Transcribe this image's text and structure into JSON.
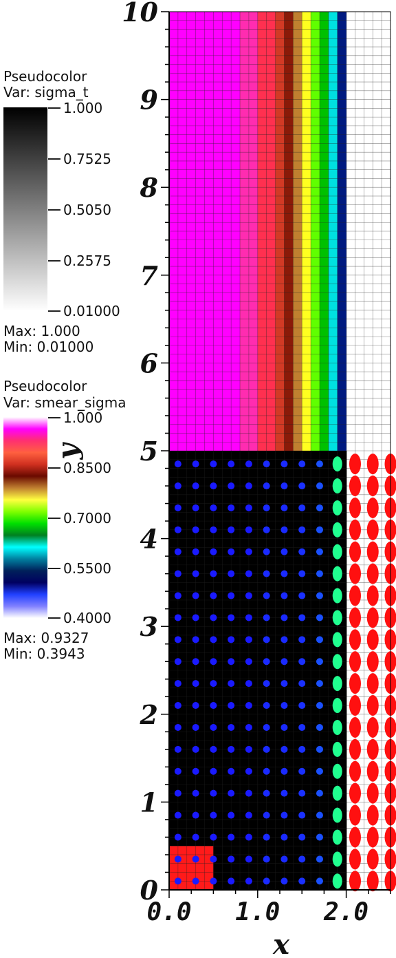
{
  "legends": [
    {
      "title": "Pseudocolor",
      "var": "Var: sigma_t",
      "ticks": [
        "1.000",
        "0.7525",
        "0.5050",
        "0.2575",
        "0.01000"
      ],
      "max": "Max:  1.000",
      "min": "Min:  0.01000",
      "colors": [
        "#000000",
        "#ffffff"
      ]
    },
    {
      "title": "Pseudocolor",
      "var": "Var: smear_sigma",
      "ticks": [
        "1.000",
        "0.8500",
        "0.7000",
        "0.5500",
        "0.4000"
      ],
      "max": "Max:  0.9327",
      "min": "Min:  0.3943",
      "colors": [
        "#ffffff",
        "#ff00ff",
        "#ff3070",
        "#ff6040",
        "#d03020",
        "#6a0a00",
        "#c08030",
        "#ffff40",
        "#80ff00",
        "#00e000",
        "#008020",
        "#00ffff",
        "#0080a0",
        "#00205a",
        "#000060",
        "#2040ff",
        "#8080ff",
        "#ffffff"
      ]
    }
  ],
  "chart_data": {
    "type": "heatmap",
    "xlabel": "x",
    "ylabel": "y",
    "xlim": [
      0,
      2.5
    ],
    "ylim": [
      0,
      10
    ],
    "xticks": [
      "0.0",
      "1.0",
      "2.0"
    ],
    "yticks": [
      "0",
      "1",
      "2",
      "3",
      "4",
      "5",
      "6",
      "7",
      "8",
      "9",
      "10"
    ],
    "upper_region_columns": [
      {
        "x0": 0.0,
        "x1": 0.8,
        "value": 0.93,
        "color": "#ff00ff"
      },
      {
        "x0": 0.8,
        "x1": 1.0,
        "value": 0.91,
        "color": "#ff2cb0"
      },
      {
        "x0": 1.0,
        "x1": 1.2,
        "value": 0.88,
        "color": "#ff3050"
      },
      {
        "x0": 1.2,
        "x1": 1.3,
        "value": 0.87,
        "color": "#d23a25"
      },
      {
        "x0": 1.3,
        "x1": 1.4,
        "value": 0.86,
        "color": "#8a1a08"
      },
      {
        "x0": 1.4,
        "x1": 1.5,
        "value": 0.84,
        "color": "#c08030"
      },
      {
        "x0": 1.5,
        "x1": 1.6,
        "value": 0.81,
        "color": "#ffff20"
      },
      {
        "x0": 1.6,
        "x1": 1.7,
        "value": 0.73,
        "color": "#60ff00"
      },
      {
        "x0": 1.7,
        "x1": 1.8,
        "value": 0.68,
        "color": "#00c000"
      },
      {
        "x0": 1.8,
        "x1": 1.9,
        "value": 0.58,
        "color": "#00e0e0"
      },
      {
        "x0": 1.9,
        "x1": 2.0,
        "value": 0.5,
        "color": "#001a80"
      }
    ],
    "lower_region": {
      "x0": 0.0,
      "x1": 2.0,
      "y0": 0,
      "y1": 5,
      "sigma_t": 1.0,
      "color": "#000000"
    },
    "source_region": {
      "x0": 0.0,
      "x1": 0.5,
      "y0": 0,
      "y1": 0.5,
      "color": "#ff1a1a"
    },
    "void_region": {
      "x0": 2.0,
      "x1": 2.5,
      "y0": 0,
      "y1": 10,
      "sigma_t": 0.01,
      "color": "#ffffff"
    },
    "point_rows_y": [
      0.1,
      0.35,
      0.6,
      0.85,
      1.1,
      1.35,
      1.6,
      1.85,
      2.1,
      2.35,
      2.6,
      2.85,
      3.1,
      3.35,
      3.6,
      3.85,
      4.1,
      4.35,
      4.6,
      4.85
    ],
    "point_columns": [
      {
        "x": 0.1,
        "color": "#1a1aff",
        "kind": "dot"
      },
      {
        "x": 0.3,
        "color": "#1a1aff",
        "kind": "dot"
      },
      {
        "x": 0.5,
        "color": "#1a1aff",
        "kind": "dot"
      },
      {
        "x": 0.7,
        "color": "#1a1aff",
        "kind": "dot"
      },
      {
        "x": 0.9,
        "color": "#1a1aff",
        "kind": "dot"
      },
      {
        "x": 1.1,
        "color": "#1a2aff",
        "kind": "dot"
      },
      {
        "x": 1.3,
        "color": "#1a2aff",
        "kind": "dot"
      },
      {
        "x": 1.5,
        "color": "#1a30ff",
        "kind": "dot"
      },
      {
        "x": 1.7,
        "color": "#1a50ff",
        "kind": "dot"
      },
      {
        "x": 1.9,
        "color": "#20ff90",
        "kind": "oval"
      },
      {
        "x": 2.1,
        "color": "#ff1010",
        "kind": "ellipse"
      },
      {
        "x": 2.3,
        "color": "#ff1010",
        "kind": "ellipse"
      },
      {
        "x": 2.5,
        "color": "#ff1010",
        "kind": "ellipse"
      }
    ]
  }
}
